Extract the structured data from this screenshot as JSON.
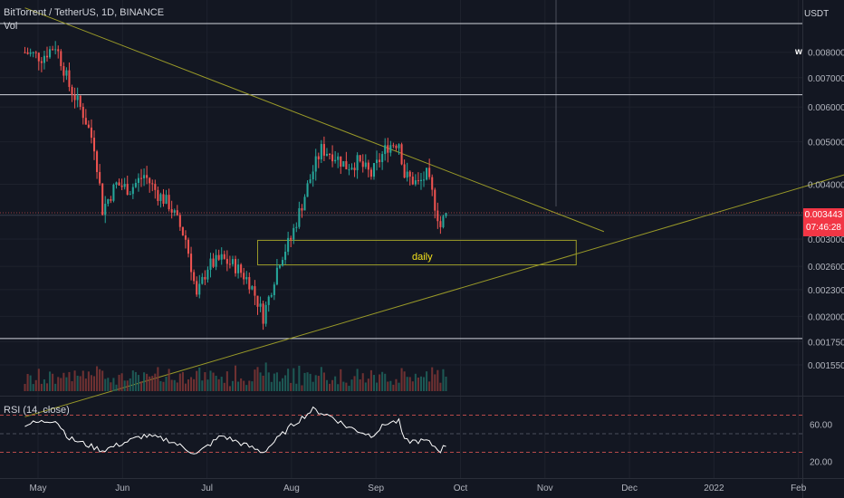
{
  "header": {
    "title": "BitTorrent / TetherUS, 1D, BINANCE",
    "volume_label": "Vol",
    "currency": "USDT",
    "watermark": "w"
  },
  "price_label": {
    "value": "0.003443",
    "countdown": "07:46:28",
    "color": "#f23645"
  },
  "annotation": {
    "text": "daily",
    "color": "#f5e31c"
  },
  "rsi": {
    "label": "RSI (14, close)",
    "ticks": [
      "60.00",
      "20.00"
    ],
    "upper_band": 70,
    "mid": 50,
    "lower_band": 30
  },
  "colors": {
    "background": "#131722",
    "up": "#26a69a",
    "down": "#ef5350",
    "trendline": "#9a9a28",
    "hline": "#d1d4dc",
    "rsi_line": "#ffffff"
  },
  "chart_data": {
    "type": "candlestick",
    "title": "BitTorrent / TetherUS, 1D, BINANCE",
    "y_scale": "log",
    "ylim": [
      0.00135,
      0.0098
    ],
    "y_ticks": [
      "0.008000",
      "0.007000",
      "0.006000",
      "0.005000",
      "0.004000",
      "0.003000",
      "0.002600",
      "0.002300",
      "0.002000",
      "0.001750",
      "0.001550"
    ],
    "x_ticks": [
      "May",
      "Jun",
      "Jul",
      "Aug",
      "Sep",
      "Oct",
      "Nov",
      "Dec",
      "2022",
      "Feb"
    ],
    "horizontal_levels": [
      0.0093,
      0.0064,
      0.0034,
      0.00178
    ],
    "zone": {
      "label": "daily",
      "low": 0.00262,
      "high": 0.00298,
      "from": "2021-07-18",
      "to": "2021-11-10"
    },
    "trendlines": [
      {
        "from": [
          "2021-04-25",
          0.0101
        ],
        "to": [
          "2021-11-20",
          0.00312
        ]
      },
      {
        "from": [
          "2021-04-25",
          0.00118
        ],
        "to": [
          "2022-02-28",
          0.00445
        ]
      }
    ],
    "anchors": [
      [
        "2021-04-25",
        0.008
      ],
      [
        "2021-05-01",
        0.0078
      ],
      [
        "2021-05-06",
        0.0083
      ],
      [
        "2021-05-11",
        0.0067
      ],
      [
        "2021-05-16",
        0.0058
      ],
      [
        "2021-05-20",
        0.0049
      ],
      [
        "2021-05-23",
        0.0035
      ],
      [
        "2021-05-28",
        0.004
      ],
      [
        "2021-06-02",
        0.0039
      ],
      [
        "2021-06-07",
        0.0042
      ],
      [
        "2021-06-12",
        0.0038
      ],
      [
        "2021-06-16",
        0.0036
      ],
      [
        "2021-06-22",
        0.003
      ],
      [
        "2021-06-26",
        0.0022
      ],
      [
        "2021-06-30",
        0.0026
      ],
      [
        "2021-07-05",
        0.0027
      ],
      [
        "2021-07-10",
        0.0026
      ],
      [
        "2021-07-15",
        0.0024
      ],
      [
        "2021-07-20",
        0.002
      ],
      [
        "2021-07-22",
        0.0022
      ],
      [
        "2021-07-26",
        0.0027
      ],
      [
        "2021-07-30",
        0.003
      ],
      [
        "2021-08-03",
        0.0036
      ],
      [
        "2021-08-07",
        0.0043
      ],
      [
        "2021-08-10",
        0.0048
      ],
      [
        "2021-08-14",
        0.0047
      ],
      [
        "2021-08-19",
        0.0044
      ],
      [
        "2021-08-23",
        0.0045
      ],
      [
        "2021-08-28",
        0.0042
      ],
      [
        "2021-09-03",
        0.0049
      ],
      [
        "2021-09-07",
        0.005
      ],
      [
        "2021-09-09",
        0.0042
      ],
      [
        "2021-09-14",
        0.004
      ],
      [
        "2021-09-17",
        0.0042
      ],
      [
        "2021-09-20",
        0.0036
      ],
      [
        "2021-09-22",
        0.0032
      ],
      [
        "2021-09-24",
        0.003443
      ]
    ],
    "rsi_anchors": [
      [
        "2021-04-25",
        60
      ],
      [
        "2021-05-06",
        65
      ],
      [
        "2021-05-11",
        45
      ],
      [
        "2021-05-23",
        32
      ],
      [
        "2021-06-07",
        48
      ],
      [
        "2021-06-16",
        43
      ],
      [
        "2021-06-26",
        28
      ],
      [
        "2021-07-05",
        48
      ],
      [
        "2021-07-20",
        30
      ],
      [
        "2021-07-30",
        58
      ],
      [
        "2021-08-07",
        76
      ],
      [
        "2021-08-14",
        68
      ],
      [
        "2021-08-19",
        58
      ],
      [
        "2021-08-28",
        48
      ],
      [
        "2021-09-03",
        62
      ],
      [
        "2021-09-07",
        63
      ],
      [
        "2021-09-09",
        42
      ],
      [
        "2021-09-17",
        42
      ],
      [
        "2021-09-22",
        32
      ],
      [
        "2021-09-24",
        38
      ]
    ]
  }
}
